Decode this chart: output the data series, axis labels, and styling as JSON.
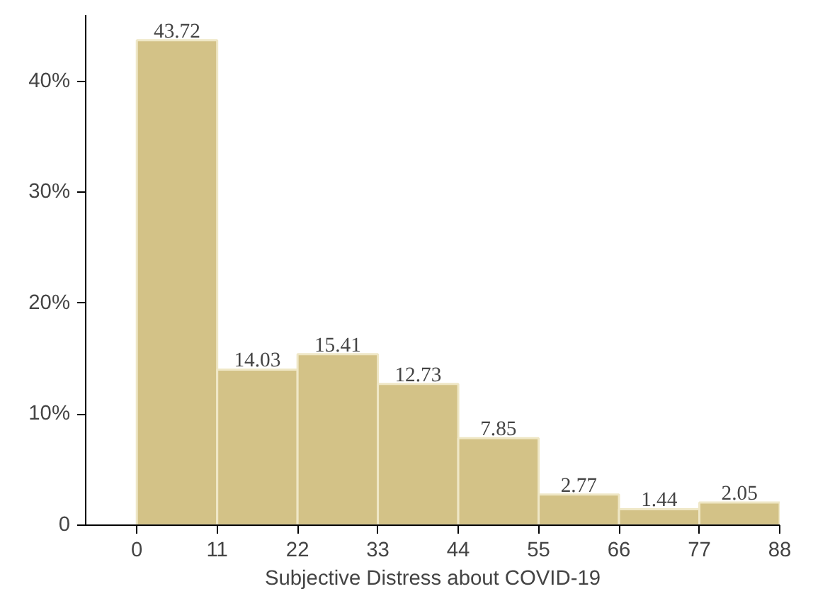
{
  "chart_data": {
    "type": "histogram",
    "xlabel": "Subjective Distress about COVID-19",
    "bins": [
      0,
      11,
      22,
      33,
      44,
      55,
      66,
      77,
      88
    ],
    "values": [
      43.72,
      14.03,
      15.41,
      12.73,
      7.85,
      2.77,
      1.44,
      2.05
    ],
    "color": "#d3c287",
    "data_labels": true,
    "grid": false,
    "xlim": [
      -7,
      88
    ],
    "xticks": [
      0,
      11,
      22,
      33,
      44,
      55,
      66,
      77,
      88
    ],
    "ylim": [
      0,
      46
    ],
    "yticks": [
      0,
      {
        "value": 10,
        "label": "10%"
      },
      {
        "value": 20,
        "label": "20%"
      },
      {
        "value": 30,
        "label": "30%"
      },
      {
        "value": 40,
        "label": "40%"
      }
    ]
  }
}
